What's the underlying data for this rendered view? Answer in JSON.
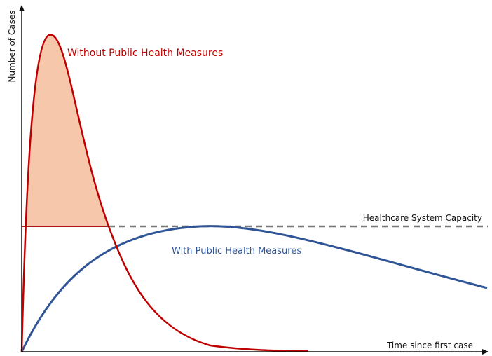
{
  "y_axis_label": "Number of Cases",
  "x_axis_label": "Time since first case",
  "capacity_label": "Healthcare System Capacity",
  "curves": [
    {
      "label": "Without Public Health Measures"
    },
    {
      "label": "With Public Health Measures"
    }
  ]
}
